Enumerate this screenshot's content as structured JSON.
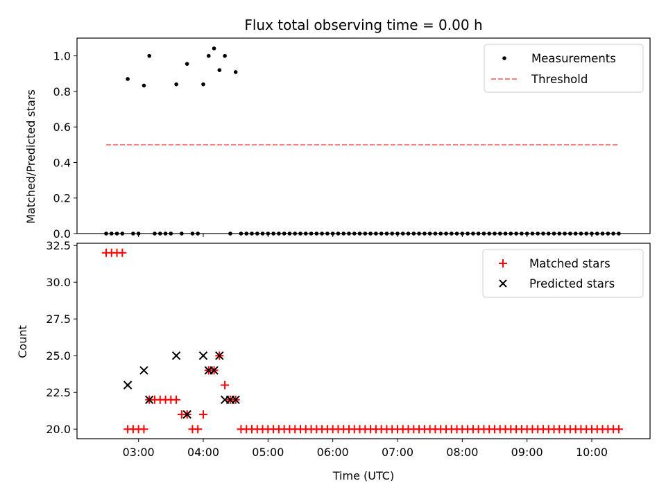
{
  "chart_data": [
    {
      "type": "scatter",
      "title": "Flux total observing time = 0.00 h",
      "xlabel": "",
      "ylabel": "Matched/Predicted stars",
      "ylim": [
        0,
        1.1
      ],
      "xlim": [
        "02:03",
        "10:54"
      ],
      "yticks": [
        "0.0",
        "0.2",
        "0.4",
        "0.6",
        "0.8",
        "1.0"
      ],
      "grid": false,
      "legend": {
        "placement": "top-right",
        "entries": [
          {
            "label": "Measurements",
            "marker": "dot",
            "color": "#000000"
          },
          {
            "label": "Threshold",
            "marker": "dashed-line",
            "color": "#ff7f7f"
          }
        ]
      },
      "series": [
        {
          "name": "Measurements",
          "color": "#000000",
          "points": [
            [
              "02:30",
              0
            ],
            [
              "02:35",
              0
            ],
            [
              "02:40",
              0
            ],
            [
              "02:45",
              0
            ],
            [
              "02:50",
              0.87
            ],
            [
              "02:55",
              0
            ],
            [
              "03:00",
              0
            ],
            [
              "03:05",
              0.833
            ],
            [
              "03:10",
              1.0
            ],
            [
              "03:15",
              0
            ],
            [
              "03:20",
              0
            ],
            [
              "03:25",
              0
            ],
            [
              "03:30",
              0
            ],
            [
              "03:35",
              0.84
            ],
            [
              "03:40",
              0
            ],
            [
              "03:45",
              0.955
            ],
            [
              "03:50",
              0
            ],
            [
              "03:55",
              0
            ],
            [
              "04:00",
              0.84
            ],
            [
              "04:05",
              1.0
            ],
            [
              "04:10",
              1.042
            ],
            [
              "04:15",
              0.92
            ],
            [
              "04:20",
              1.0
            ],
            [
              "04:25",
              0
            ],
            [
              "04:30",
              0.909
            ],
            [
              "04:35",
              0
            ],
            [
              "04:40",
              0
            ],
            [
              "04:45",
              0
            ],
            [
              "04:50",
              0
            ],
            [
              "04:55",
              0
            ],
            [
              "05:00",
              0
            ],
            [
              "05:05",
              0
            ],
            [
              "05:10",
              0
            ],
            [
              "05:15",
              0
            ],
            [
              "05:20",
              0
            ],
            [
              "05:25",
              0
            ],
            [
              "05:30",
              0
            ],
            [
              "05:35",
              0
            ],
            [
              "05:40",
              0
            ],
            [
              "05:45",
              0
            ],
            [
              "05:50",
              0
            ],
            [
              "05:55",
              0
            ],
            [
              "06:00",
              0
            ],
            [
              "06:05",
              0
            ],
            [
              "06:10",
              0
            ],
            [
              "06:15",
              0
            ],
            [
              "06:20",
              0
            ],
            [
              "06:25",
              0
            ],
            [
              "06:30",
              0
            ],
            [
              "06:35",
              0
            ],
            [
              "06:40",
              0
            ],
            [
              "06:45",
              0
            ],
            [
              "06:50",
              0
            ],
            [
              "06:55",
              0
            ],
            [
              "07:00",
              0
            ],
            [
              "07:05",
              0
            ],
            [
              "07:10",
              0
            ],
            [
              "07:15",
              0
            ],
            [
              "07:20",
              0
            ],
            [
              "07:25",
              0
            ],
            [
              "07:30",
              0
            ],
            [
              "07:35",
              0
            ],
            [
              "07:40",
              0
            ],
            [
              "07:45",
              0
            ],
            [
              "07:50",
              0
            ],
            [
              "07:55",
              0
            ],
            [
              "08:00",
              0
            ],
            [
              "08:05",
              0
            ],
            [
              "08:10",
              0
            ],
            [
              "08:15",
              0
            ],
            [
              "08:20",
              0
            ],
            [
              "08:25",
              0
            ],
            [
              "08:30",
              0
            ],
            [
              "08:35",
              0
            ],
            [
              "08:40",
              0
            ],
            [
              "08:45",
              0
            ],
            [
              "08:50",
              0
            ],
            [
              "08:55",
              0
            ],
            [
              "09:00",
              0
            ],
            [
              "09:05",
              0
            ],
            [
              "09:10",
              0
            ],
            [
              "09:15",
              0
            ],
            [
              "09:20",
              0
            ],
            [
              "09:25",
              0
            ],
            [
              "09:30",
              0
            ],
            [
              "09:35",
              0
            ],
            [
              "09:40",
              0
            ],
            [
              "09:45",
              0
            ],
            [
              "09:50",
              0
            ],
            [
              "09:55",
              0
            ],
            [
              "10:00",
              0
            ],
            [
              "10:05",
              0
            ],
            [
              "10:10",
              0
            ],
            [
              "10:15",
              0
            ],
            [
              "10:20",
              0
            ],
            [
              "10:25",
              0
            ]
          ]
        },
        {
          "name": "Threshold",
          "color": "#ff7f7f",
          "line": {
            "x": [
              "02:30",
              "10:25"
            ],
            "y": 0.5
          }
        }
      ]
    },
    {
      "type": "scatter",
      "title": "",
      "xlabel": "Time (UTC)",
      "ylabel": "Count",
      "ylim": [
        19.35,
        32.65
      ],
      "xlim": [
        "02:03",
        "10:54"
      ],
      "yticks": [
        "20.0",
        "22.5",
        "25.0",
        "27.5",
        "30.0",
        "32.5"
      ],
      "xticks": [
        "03:00",
        "04:00",
        "05:00",
        "06:00",
        "07:00",
        "08:00",
        "09:00",
        "10:00"
      ],
      "grid": false,
      "legend": {
        "placement": "top-right",
        "entries": [
          {
            "label": "Matched stars",
            "marker": "plus",
            "color": "#ff0000"
          },
          {
            "label": "Predicted stars",
            "marker": "x",
            "color": "#000000"
          }
        ]
      },
      "series": [
        {
          "name": "Matched stars",
          "color": "#ff0000",
          "marker": "plus",
          "points": [
            [
              "02:30",
              32
            ],
            [
              "02:35",
              32
            ],
            [
              "02:40",
              32
            ],
            [
              "02:45",
              32
            ],
            [
              "02:50",
              20
            ],
            [
              "02:55",
              20
            ],
            [
              "03:00",
              20
            ],
            [
              "03:05",
              20
            ],
            [
              "03:10",
              22
            ],
            [
              "03:15",
              22
            ],
            [
              "03:20",
              22
            ],
            [
              "03:25",
              22
            ],
            [
              "03:30",
              22
            ],
            [
              "03:35",
              22
            ],
            [
              "03:40",
              21
            ],
            [
              "03:45",
              21
            ],
            [
              "03:50",
              20
            ],
            [
              "03:55",
              20
            ],
            [
              "04:00",
              21
            ],
            [
              "04:05",
              24
            ],
            [
              "04:10",
              24
            ],
            [
              "04:15",
              25
            ],
            [
              "04:20",
              23
            ],
            [
              "04:25",
              22
            ],
            [
              "04:30",
              22
            ],
            [
              "04:35",
              20
            ],
            [
              "04:40",
              20
            ],
            [
              "04:45",
              20
            ],
            [
              "04:50",
              20
            ],
            [
              "04:55",
              20
            ],
            [
              "05:00",
              20
            ],
            [
              "05:05",
              20
            ],
            [
              "05:10",
              20
            ],
            [
              "05:15",
              20
            ],
            [
              "05:20",
              20
            ],
            [
              "05:25",
              20
            ],
            [
              "05:30",
              20
            ],
            [
              "05:35",
              20
            ],
            [
              "05:40",
              20
            ],
            [
              "05:45",
              20
            ],
            [
              "05:50",
              20
            ],
            [
              "05:55",
              20
            ],
            [
              "06:00",
              20
            ],
            [
              "06:05",
              20
            ],
            [
              "06:10",
              20
            ],
            [
              "06:15",
              20
            ],
            [
              "06:20",
              20
            ],
            [
              "06:25",
              20
            ],
            [
              "06:30",
              20
            ],
            [
              "06:35",
              20
            ],
            [
              "06:40",
              20
            ],
            [
              "06:45",
              20
            ],
            [
              "06:50",
              20
            ],
            [
              "06:55",
              20
            ],
            [
              "07:00",
              20
            ],
            [
              "07:05",
              20
            ],
            [
              "07:10",
              20
            ],
            [
              "07:15",
              20
            ],
            [
              "07:20",
              20
            ],
            [
              "07:25",
              20
            ],
            [
              "07:30",
              20
            ],
            [
              "07:35",
              20
            ],
            [
              "07:40",
              20
            ],
            [
              "07:45",
              20
            ],
            [
              "07:50",
              20
            ],
            [
              "07:55",
              20
            ],
            [
              "08:00",
              20
            ],
            [
              "08:05",
              20
            ],
            [
              "08:10",
              20
            ],
            [
              "08:15",
              20
            ],
            [
              "08:20",
              20
            ],
            [
              "08:25",
              20
            ],
            [
              "08:30",
              20
            ],
            [
              "08:35",
              20
            ],
            [
              "08:40",
              20
            ],
            [
              "08:45",
              20
            ],
            [
              "08:50",
              20
            ],
            [
              "08:55",
              20
            ],
            [
              "09:00",
              20
            ],
            [
              "09:05",
              20
            ],
            [
              "09:10",
              20
            ],
            [
              "09:15",
              20
            ],
            [
              "09:20",
              20
            ],
            [
              "09:25",
              20
            ],
            [
              "09:30",
              20
            ],
            [
              "09:35",
              20
            ],
            [
              "09:40",
              20
            ],
            [
              "09:45",
              20
            ],
            [
              "09:50",
              20
            ],
            [
              "09:55",
              20
            ],
            [
              "10:00",
              20
            ],
            [
              "10:05",
              20
            ],
            [
              "10:10",
              20
            ],
            [
              "10:15",
              20
            ],
            [
              "10:20",
              20
            ],
            [
              "10:25",
              20
            ]
          ]
        },
        {
          "name": "Predicted stars",
          "color": "#000000",
          "marker": "x",
          "points": [
            [
              "02:50",
              23
            ],
            [
              "03:05",
              24
            ],
            [
              "03:10",
              22
            ],
            [
              "03:35",
              25
            ],
            [
              "03:45",
              21
            ],
            [
              "04:00",
              25
            ],
            [
              "04:05",
              24
            ],
            [
              "04:10",
              24
            ],
            [
              "04:15",
              25
            ],
            [
              "04:20",
              22
            ],
            [
              "04:25",
              22
            ],
            [
              "04:30",
              22
            ]
          ]
        }
      ]
    }
  ]
}
